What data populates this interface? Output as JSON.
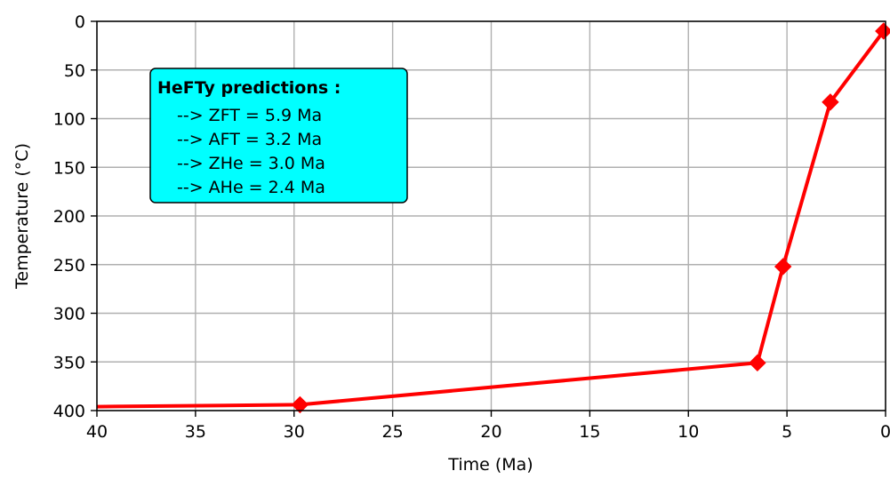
{
  "chart_data": {
    "type": "line",
    "title": "",
    "xlabel": "Time (Ma)",
    "ylabel": "Temperature (°C)",
    "xlim": [
      40,
      0
    ],
    "ylim": [
      400,
      0
    ],
    "x_reversed": true,
    "y_reversed": true,
    "grid": true,
    "xticks": [
      40,
      35,
      30,
      25,
      20,
      15,
      10,
      5,
      0
    ],
    "yticks": [
      0,
      50,
      100,
      150,
      200,
      250,
      300,
      350,
      400
    ],
    "series": [
      {
        "color": "#ff0000",
        "marker": "diamond",
        "line_points": [
          [
            40,
            396
          ],
          [
            29.7,
            394
          ],
          [
            6.5,
            351
          ],
          [
            5.2,
            252
          ],
          [
            2.8,
            83
          ],
          [
            0.1,
            10
          ]
        ],
        "marker_points": [
          [
            29.7,
            394
          ],
          [
            6.5,
            351
          ],
          [
            5.2,
            252
          ],
          [
            2.8,
            83
          ],
          [
            0.1,
            10
          ]
        ]
      }
    ],
    "annotation": {
      "title": "HeFTy  predictions :",
      "lines": [
        "--> ZFT = 5.9 Ma",
        "--> AFT = 3.2 Ma",
        "--> ZHe = 3.0 Ma",
        "--> AHe = 2.4 Ma"
      ],
      "background": "#00ffff"
    }
  }
}
